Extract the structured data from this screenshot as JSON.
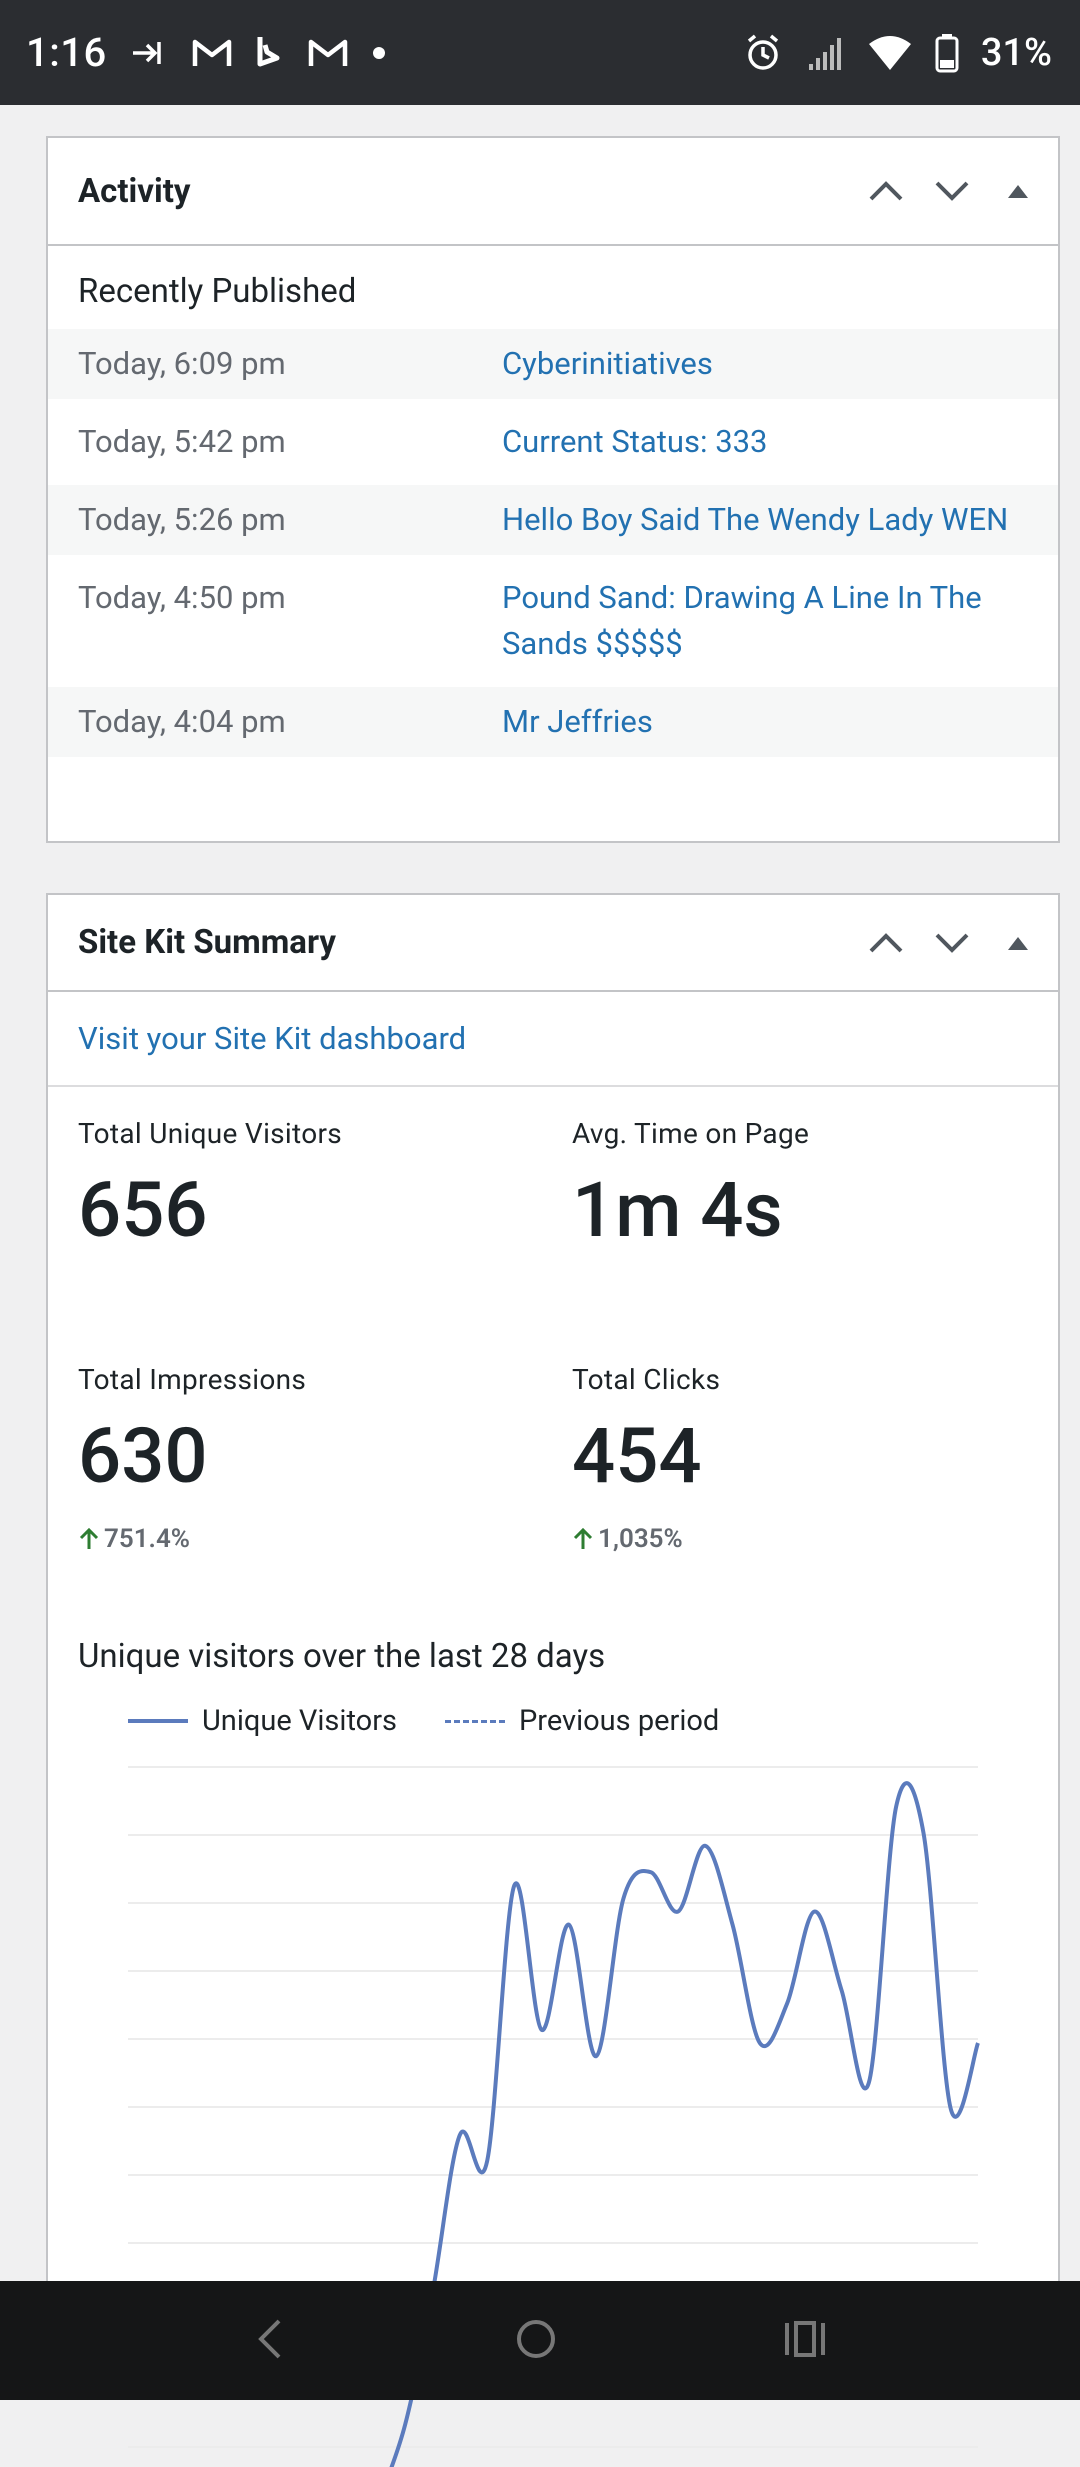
{
  "status_bar": {
    "time": "1:16",
    "battery_pct": "31%",
    "notification_icons": [
      "arrow-in-icon",
      "gmail-icon",
      "bing-icon",
      "gmail-icon",
      "dot-icon"
    ],
    "system_icons": [
      "alarm-icon",
      "signal-icon",
      "wifi-icon",
      "battery-icon"
    ]
  },
  "activity": {
    "title": "Activity",
    "subtitle": "Recently Published",
    "items": [
      {
        "date": "Today, 6:09 pm",
        "title": "Cyberinitiatives"
      },
      {
        "date": "Today, 5:42 pm",
        "title": "Current Status: 333"
      },
      {
        "date": "Today, 5:26 pm",
        "title": "Hello Boy Said The Wendy Lady WEN"
      },
      {
        "date": "Today, 4:50 pm",
        "title": "Pound Sand: Drawing A Line In The Sands $$$$$"
      },
      {
        "date": "Today, 4:04 pm",
        "title": "Mr Jeffries"
      }
    ]
  },
  "sitekit": {
    "title": "Site Kit Summary",
    "dashboard_link": "Visit your Site Kit dashboard",
    "metrics": {
      "visitors": {
        "label": "Total Unique Visitors",
        "value": "656"
      },
      "time_on_page": {
        "label": "Avg. Time on Page",
        "value": "1m 4s"
      },
      "impressions": {
        "label": "Total Impressions",
        "value": "630",
        "change": "751.4%"
      },
      "clicks": {
        "label": "Total Clicks",
        "value": "454",
        "change": "1,035%"
      }
    },
    "chart_title": "Unique visitors over the last 28 days",
    "legend": {
      "current": "Unique Visitors",
      "previous": "Previous period"
    }
  },
  "colors": {
    "link": "#2271b1",
    "line": "#5b7bbd",
    "positive": "#2e7d32"
  },
  "chart_data": {
    "type": "line",
    "title": "Unique visitors over the last 28 days",
    "series": [
      {
        "name": "Unique Visitors",
        "values": [
          14,
          20,
          30,
          42,
          40,
          61,
          50,
          58,
          48,
          60,
          62,
          59,
          64,
          58,
          49,
          52,
          59,
          53,
          46,
          67,
          65,
          44,
          49
        ]
      },
      {
        "name": "Previous period",
        "values": []
      }
    ],
    "grid": true,
    "legend": "top-left"
  }
}
